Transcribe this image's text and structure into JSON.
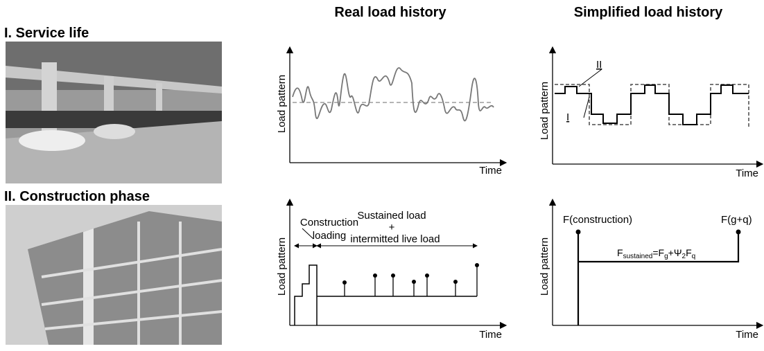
{
  "header": {
    "real": "Real load history",
    "simplified": "Simplified load history"
  },
  "rows": [
    {
      "title": "I. Service life"
    },
    {
      "title": "II. Construction phase"
    }
  ],
  "plots": [
    {
      "ylabel": "Load pattern",
      "xlabel": "Time"
    },
    {
      "ylabel": "Load pattern",
      "xlabel": "Time",
      "labels": [
        "II",
        "I"
      ]
    },
    {
      "ylabel": "Load pattern",
      "xlabel": "Time",
      "labels": [
        "Construction",
        "loading",
        "Sustained load",
        "+",
        "intermitted live load"
      ]
    },
    {
      "ylabel": "Load pattern",
      "xlabel": "Time",
      "labels": [
        "F(construction)",
        "F(g+q)"
      ],
      "formula": [
        "F",
        "sustained",
        "=F",
        "g",
        "+Ψ",
        "2",
        "F",
        "q"
      ]
    }
  ]
}
